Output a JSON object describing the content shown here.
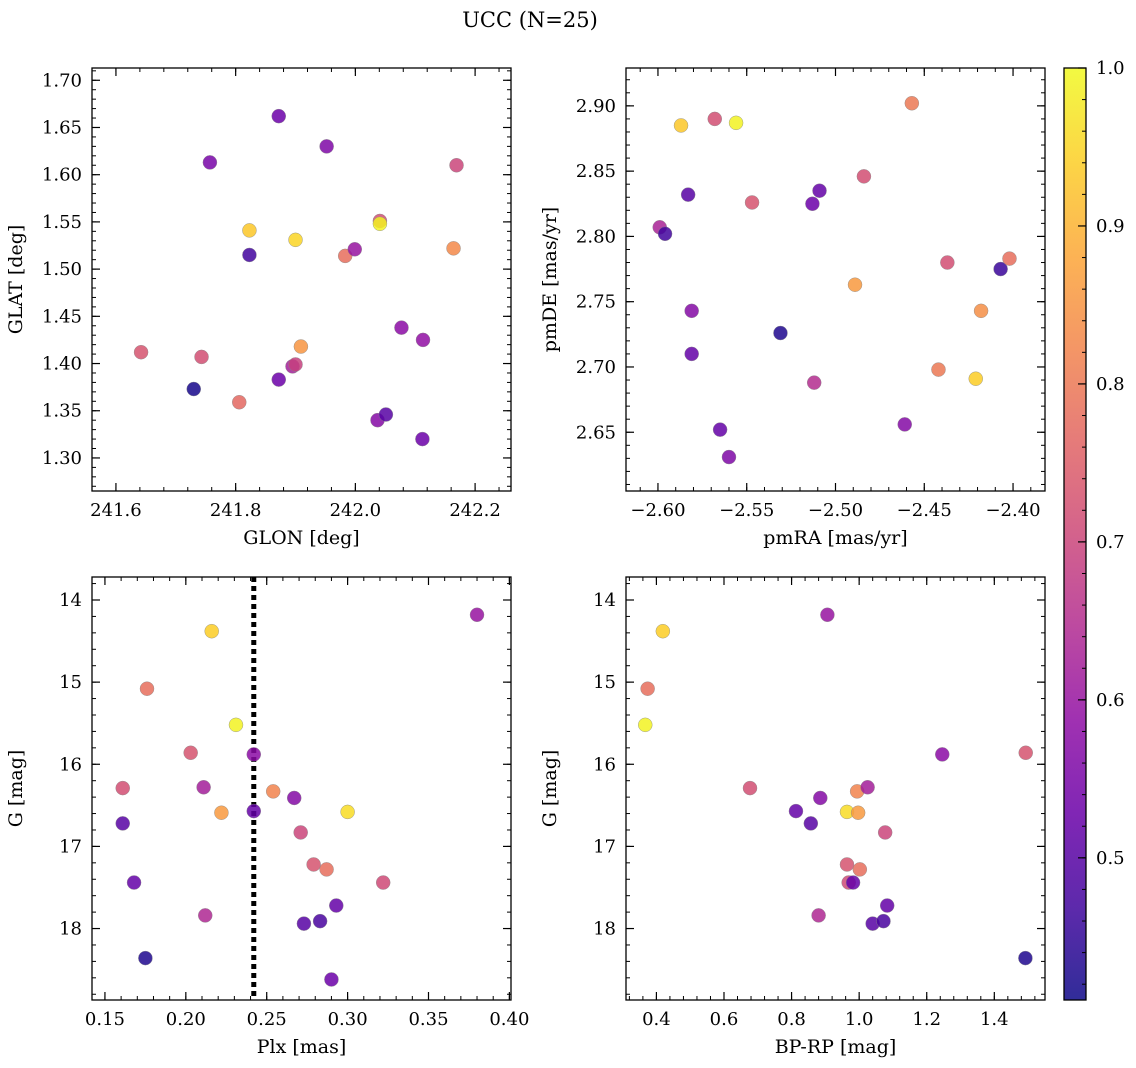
{
  "figure": {
    "title": "UCC (N=25)"
  },
  "colorbar": {
    "min": 0.41,
    "max": 1.0,
    "ticks": [
      0.5,
      0.6,
      0.7,
      0.8,
      0.9,
      1.0
    ],
    "tick_labels": [
      "0.5",
      "0.6",
      "0.7",
      "0.8",
      "0.9",
      "1.0"
    ],
    "colormap": "plasma"
  },
  "chart_data": [
    {
      "type": "scatter",
      "xlabel": "GLON [deg]",
      "ylabel": "GLAT [deg]",
      "xlim": [
        241.56,
        242.26
      ],
      "ylim": [
        1.265,
        1.713
      ],
      "xticks": [
        241.6,
        241.8,
        242.0,
        242.2
      ],
      "xtick_labels": [
        "241.6",
        "241.8",
        "242.0",
        "242.2"
      ],
      "yticks": [
        1.3,
        1.35,
        1.4,
        1.45,
        1.5,
        1.55,
        1.6,
        1.65,
        1.7
      ],
      "ytick_labels": [
        "1.30",
        "1.35",
        "1.40",
        "1.45",
        "1.50",
        "1.55",
        "1.60",
        "1.65",
        "1.70"
      ],
      "points": [
        {
          "x": 241.642,
          "y": 1.412,
          "c": 0.73
        },
        {
          "x": 241.73,
          "y": 1.373,
          "c": 0.42
        },
        {
          "x": 241.743,
          "y": 1.407,
          "c": 0.72
        },
        {
          "x": 241.757,
          "y": 1.613,
          "c": 0.55
        },
        {
          "x": 241.806,
          "y": 1.359,
          "c": 0.77
        },
        {
          "x": 241.823,
          "y": 1.541,
          "c": 0.93
        },
        {
          "x": 241.823,
          "y": 1.515,
          "c": 0.47
        },
        {
          "x": 241.872,
          "y": 1.662,
          "c": 0.53
        },
        {
          "x": 241.872,
          "y": 1.383,
          "c": 0.53
        },
        {
          "x": 241.895,
          "y": 1.397,
          "c": 0.62
        },
        {
          "x": 241.9,
          "y": 1.399,
          "c": 0.69
        },
        {
          "x": 241.9,
          "y": 1.531,
          "c": 0.95
        },
        {
          "x": 241.909,
          "y": 1.418,
          "c": 0.85
        },
        {
          "x": 241.952,
          "y": 1.63,
          "c": 0.56
        },
        {
          "x": 241.983,
          "y": 1.514,
          "c": 0.78
        },
        {
          "x": 241.999,
          "y": 1.521,
          "c": 0.6
        },
        {
          "x": 242.037,
          "y": 1.34,
          "c": 0.57
        },
        {
          "x": 242.041,
          "y": 1.551,
          "c": 0.72
        },
        {
          "x": 242.041,
          "y": 1.548,
          "c": 0.99
        },
        {
          "x": 242.051,
          "y": 1.346,
          "c": 0.5
        },
        {
          "x": 242.077,
          "y": 1.438,
          "c": 0.58
        },
        {
          "x": 242.112,
          "y": 1.32,
          "c": 0.53
        },
        {
          "x": 242.113,
          "y": 1.425,
          "c": 0.59
        },
        {
          "x": 242.164,
          "y": 1.522,
          "c": 0.83
        },
        {
          "x": 242.169,
          "y": 1.61,
          "c": 0.7
        }
      ]
    },
    {
      "type": "scatter",
      "xlabel": "pmRA [mas/yr]",
      "ylabel": "pmDE [mas/yr]",
      "xlim": [
        -2.618,
        -2.382
      ],
      "ylim": [
        2.605,
        2.929
      ],
      "xticks": [
        -2.6,
        -2.55,
        -2.5,
        -2.45,
        -2.4
      ],
      "xtick_labels": [
        "−2.60",
        "−2.55",
        "−2.50",
        "−2.45",
        "−2.40"
      ],
      "yticks": [
        2.65,
        2.7,
        2.75,
        2.8,
        2.85,
        2.9
      ],
      "ytick_labels": [
        "2.65",
        "2.70",
        "2.75",
        "2.80",
        "2.85",
        "2.90"
      ],
      "points": [
        {
          "x": -2.599,
          "y": 2.807,
          "c": 0.63
        },
        {
          "x": -2.596,
          "y": 2.802,
          "c": 0.47
        },
        {
          "x": -2.587,
          "y": 2.885,
          "c": 0.93
        },
        {
          "x": -2.583,
          "y": 2.832,
          "c": 0.5
        },
        {
          "x": -2.581,
          "y": 2.743,
          "c": 0.57
        },
        {
          "x": -2.581,
          "y": 2.71,
          "c": 0.52
        },
        {
          "x": -2.568,
          "y": 2.89,
          "c": 0.72
        },
        {
          "x": -2.565,
          "y": 2.652,
          "c": 0.52
        },
        {
          "x": -2.56,
          "y": 2.631,
          "c": 0.56
        },
        {
          "x": -2.556,
          "y": 2.887,
          "c": 0.99
        },
        {
          "x": -2.547,
          "y": 2.826,
          "c": 0.73
        },
        {
          "x": -2.531,
          "y": 2.726,
          "c": 0.43
        },
        {
          "x": -2.513,
          "y": 2.825,
          "c": 0.53
        },
        {
          "x": -2.512,
          "y": 2.688,
          "c": 0.65
        },
        {
          "x": -2.509,
          "y": 2.835,
          "c": 0.52
        },
        {
          "x": -2.489,
          "y": 2.763,
          "c": 0.86
        },
        {
          "x": -2.484,
          "y": 2.846,
          "c": 0.72
        },
        {
          "x": -2.461,
          "y": 2.656,
          "c": 0.57
        },
        {
          "x": -2.457,
          "y": 2.902,
          "c": 0.8
        },
        {
          "x": -2.442,
          "y": 2.698,
          "c": 0.8
        },
        {
          "x": -2.437,
          "y": 2.78,
          "c": 0.72
        },
        {
          "x": -2.421,
          "y": 2.691,
          "c": 0.94
        },
        {
          "x": -2.418,
          "y": 2.743,
          "c": 0.84
        },
        {
          "x": -2.407,
          "y": 2.775,
          "c": 0.46
        },
        {
          "x": -2.402,
          "y": 2.783,
          "c": 0.78
        }
      ]
    },
    {
      "type": "scatter",
      "xlabel": "Plx [mas]",
      "ylabel": "G [mag]",
      "xlim": [
        0.142,
        0.401
      ],
      "ylim": [
        18.87,
        13.72
      ],
      "y_inverted": true,
      "vline": {
        "x": 0.242,
        "style": "dotted"
      },
      "xticks": [
        0.15,
        0.2,
        0.25,
        0.3,
        0.35,
        0.4
      ],
      "xtick_labels": [
        "0.15",
        "0.20",
        "0.25",
        "0.30",
        "0.35",
        "0.40"
      ],
      "yticks": [
        14,
        15,
        16,
        17,
        18
      ],
      "ytick_labels": [
        "14",
        "15",
        "16",
        "17",
        "18"
      ],
      "points": [
        {
          "x": 0.161,
          "y": 16.29,
          "c": 0.72
        },
        {
          "x": 0.161,
          "y": 16.72,
          "c": 0.5
        },
        {
          "x": 0.168,
          "y": 17.44,
          "c": 0.52
        },
        {
          "x": 0.175,
          "y": 18.36,
          "c": 0.43
        },
        {
          "x": 0.176,
          "y": 15.08,
          "c": 0.78
        },
        {
          "x": 0.203,
          "y": 15.86,
          "c": 0.73
        },
        {
          "x": 0.211,
          "y": 16.28,
          "c": 0.62
        },
        {
          "x": 0.212,
          "y": 17.84,
          "c": 0.64
        },
        {
          "x": 0.216,
          "y": 14.38,
          "c": 0.94
        },
        {
          "x": 0.222,
          "y": 16.59,
          "c": 0.86
        },
        {
          "x": 0.231,
          "y": 15.52,
          "c": 0.99
        },
        {
          "x": 0.242,
          "y": 15.88,
          "c": 0.58
        },
        {
          "x": 0.242,
          "y": 16.57,
          "c": 0.52
        },
        {
          "x": 0.254,
          "y": 16.33,
          "c": 0.82
        },
        {
          "x": 0.267,
          "y": 16.41,
          "c": 0.57
        },
        {
          "x": 0.271,
          "y": 16.83,
          "c": 0.7
        },
        {
          "x": 0.273,
          "y": 17.94,
          "c": 0.5
        },
        {
          "x": 0.279,
          "y": 17.22,
          "c": 0.73
        },
        {
          "x": 0.283,
          "y": 17.91,
          "c": 0.48
        },
        {
          "x": 0.287,
          "y": 17.28,
          "c": 0.78
        },
        {
          "x": 0.29,
          "y": 18.62,
          "c": 0.53
        },
        {
          "x": 0.293,
          "y": 17.72,
          "c": 0.52
        },
        {
          "x": 0.3,
          "y": 16.58,
          "c": 0.96
        },
        {
          "x": 0.322,
          "y": 17.44,
          "c": 0.71
        },
        {
          "x": 0.38,
          "y": 14.18,
          "c": 0.6
        }
      ]
    },
    {
      "type": "scatter",
      "xlabel": "BP-RP [mag]",
      "ylabel": "G [mag]",
      "xlim": [
        0.31,
        1.55
      ],
      "ylim": [
        18.87,
        13.72
      ],
      "y_inverted": true,
      "xticks": [
        0.4,
        0.6,
        0.8,
        1.0,
        1.2,
        1.4
      ],
      "xtick_labels": [
        "0.4",
        "0.6",
        "0.8",
        "1.0",
        "1.2",
        "1.4"
      ],
      "yticks": [
        14,
        15,
        16,
        17,
        18
      ],
      "ytick_labels": [
        "14",
        "15",
        "16",
        "17",
        "18"
      ],
      "points": [
        {
          "x": 0.367,
          "y": 15.52,
          "c": 0.99
        },
        {
          "x": 0.374,
          "y": 15.08,
          "c": 0.78
        },
        {
          "x": 0.419,
          "y": 14.38,
          "c": 0.94
        },
        {
          "x": 0.677,
          "y": 16.29,
          "c": 0.72
        },
        {
          "x": 0.813,
          "y": 16.57,
          "c": 0.52
        },
        {
          "x": 0.857,
          "y": 16.72,
          "c": 0.5
        },
        {
          "x": 0.88,
          "y": 17.84,
          "c": 0.64
        },
        {
          "x": 0.885,
          "y": 16.41,
          "c": 0.57
        },
        {
          "x": 0.906,
          "y": 14.18,
          "c": 0.6
        },
        {
          "x": 0.964,
          "y": 17.22,
          "c": 0.73
        },
        {
          "x": 0.964,
          "y": 16.58,
          "c": 0.96
        },
        {
          "x": 0.969,
          "y": 17.44,
          "c": 0.71
        },
        {
          "x": 0.982,
          "y": 17.44,
          "c": 0.52
        },
        {
          "x": 0.994,
          "y": 16.33,
          "c": 0.82
        },
        {
          "x": 0.997,
          "y": 16.59,
          "c": 0.86
        },
        {
          "x": 1.002,
          "y": 17.28,
          "c": 0.78
        },
        {
          "x": 1.025,
          "y": 16.28,
          "c": 0.62
        },
        {
          "x": 1.04,
          "y": 17.94,
          "c": 0.5
        },
        {
          "x": 1.072,
          "y": 17.91,
          "c": 0.48
        },
        {
          "x": 1.077,
          "y": 16.83,
          "c": 0.7
        },
        {
          "x": 1.083,
          "y": 17.72,
          "c": 0.52
        },
        {
          "x": 1.246,
          "y": 15.88,
          "c": 0.58
        },
        {
          "x": 1.492,
          "y": 18.36,
          "c": 0.43
        },
        {
          "x": 1.493,
          "y": 15.86,
          "c": 0.73
        }
      ]
    }
  ]
}
